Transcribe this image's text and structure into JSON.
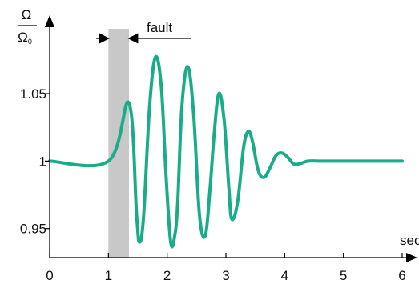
{
  "chart_data": {
    "type": "line",
    "title": "",
    "xlabel": "sec",
    "ylabel_numerator": "Ω",
    "ylabel_denominator": "Ω",
    "ylabel_denominator_sub": "0",
    "xlim": [
      0,
      6
    ],
    "ylim": [
      0.9285,
      1.1004
    ],
    "x_ticks": [
      "0",
      "1",
      "2",
      "3",
      "4",
      "5",
      "6"
    ],
    "y_ticks": [
      {
        "value": 1.05,
        "label": "1.05"
      },
      {
        "value": 1.0,
        "label": "1"
      },
      {
        "value": 0.95,
        "label": "0.95"
      }
    ],
    "grid": false,
    "shaded_region": {
      "x_start": 1.0,
      "x_end": 1.35
    },
    "annotation": {
      "text": "fault"
    },
    "series": [
      {
        "color": "#1aab8a",
        "x": [
          0,
          1.0,
          1.35,
          1.48,
          1.53,
          1.6,
          1.7,
          1.8,
          1.9,
          1.98,
          2.06,
          2.13,
          2.18,
          2.25,
          2.35,
          2.45,
          2.55,
          2.65,
          2.73,
          2.8,
          2.88,
          2.97,
          3.05,
          3.1,
          3.2,
          3.3,
          3.38,
          3.45,
          3.55,
          3.65,
          3.75,
          3.85,
          3.95,
          4.05,
          4.15,
          4.25,
          4.4,
          4.6,
          4.8,
          5.0,
          5.5,
          6.0
        ],
        "y": [
          1.0,
          1.0,
          1.043,
          0.96,
          0.94,
          0.96,
          1.04,
          1.077,
          1.055,
          0.99,
          0.94,
          0.945,
          0.97,
          1.04,
          1.07,
          1.035,
          0.96,
          0.945,
          0.98,
          1.02,
          1.05,
          1.03,
          0.98,
          0.957,
          0.97,
          1.01,
          1.022,
          1.015,
          0.993,
          0.988,
          0.995,
          1.004,
          1.006,
          1.003,
          0.998,
          0.998,
          1.0,
          1.0,
          1.0,
          1.0,
          1.0,
          1.0
        ]
      }
    ]
  }
}
